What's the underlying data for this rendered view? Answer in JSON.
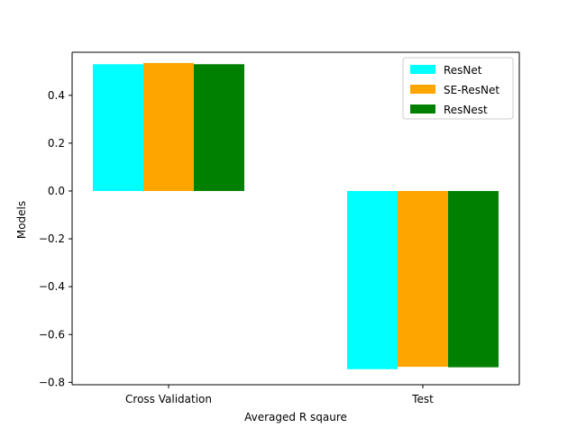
{
  "chart_data": {
    "type": "bar",
    "title": "",
    "xlabel": "Averaged R sqaure",
    "ylabel": "Models",
    "categories": [
      "Cross Validation",
      "Test"
    ],
    "series": [
      {
        "name": "ResNet",
        "color": "#00ffff",
        "values": [
          0.53,
          -0.745
        ]
      },
      {
        "name": "SE-ResNet",
        "color": "#ffa500",
        "values": [
          0.535,
          -0.735
        ]
      },
      {
        "name": "ResNest",
        "color": "#008000",
        "values": [
          0.53,
          -0.737
        ]
      }
    ],
    "ylim": [
      -0.81,
      0.58
    ],
    "yticks": [
      0.4,
      0.2,
      0.0,
      -0.2,
      -0.4,
      -0.6,
      -0.8
    ],
    "ytick_labels": [
      "0.4",
      "0.2",
      "0.0",
      "−0.2",
      "−0.4",
      "−0.6",
      "−0.8"
    ],
    "grid": false,
    "legend_position": "top-right"
  }
}
